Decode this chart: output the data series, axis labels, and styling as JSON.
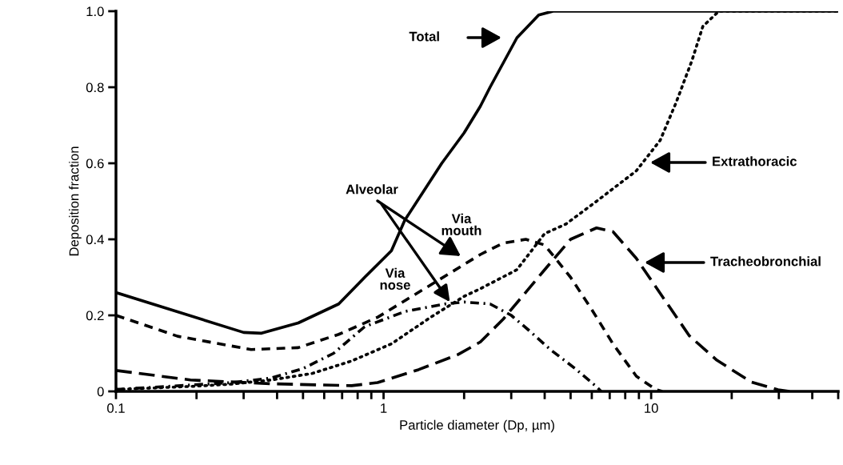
{
  "chart_data": {
    "type": "line",
    "xlabel": "Particle diameter (Dp, µm)",
    "ylabel": "Deposition fraction",
    "log": "x",
    "grid": false,
    "legend": false,
    "marker": "none",
    "xlim": [
      0.1,
      50
    ],
    "ylim": [
      0,
      1.0
    ],
    "xticks": [
      0.1,
      {
        "value": 0.2,
        "label": null
      },
      {
        "value": 0.3,
        "label": null
      },
      {
        "value": 0.4,
        "label": null
      },
      {
        "value": 0.5,
        "label": null
      },
      {
        "value": 0.6,
        "label": null
      },
      {
        "value": 0.7,
        "label": null
      },
      {
        "value": 0.8,
        "label": null
      },
      {
        "value": 0.9,
        "label": null
      },
      1,
      {
        "value": 2,
        "label": null
      },
      {
        "value": 3,
        "label": null
      },
      {
        "value": 4,
        "label": null
      },
      {
        "value": 5,
        "label": null
      },
      {
        "value": 6,
        "label": null
      },
      {
        "value": 7,
        "label": null
      },
      {
        "value": 8,
        "label": null
      },
      {
        "value": 9,
        "label": null
      },
      10,
      {
        "value": 20,
        "label": null
      },
      {
        "value": 30,
        "label": null
      },
      {
        "value": 40,
        "label": null
      },
      {
        "value": 50,
        "label": null
      }
    ],
    "yticks": [
      0,
      0.2,
      0.4,
      0.6,
      0.8,
      {
        "value": 1,
        "label": "1.0"
      }
    ],
    "series": [
      {
        "color": "#000000",
        "line_style": "solid",
        "x": [
          0.1,
          0.3,
          0.35,
          0.48,
          0.68,
          0.85,
          1.07,
          1.2,
          1.65,
          2.0,
          2.3,
          2.5,
          3.15,
          3.8,
          4.3,
          10,
          50
        ],
        "values": [
          0.26,
          0.155,
          0.153,
          0.18,
          0.23,
          0.3,
          0.37,
          0.45,
          0.6,
          0.68,
          0.75,
          0.8,
          0.93,
          0.99,
          1.0,
          1.0,
          1.0
        ]
      },
      {
        "color": "#000000",
        "line_style": "dotted",
        "x": [
          0.1,
          0.19,
          0.27,
          0.38,
          0.54,
          0.76,
          1.07,
          1.5,
          2.0,
          2.3,
          3.15,
          4.0,
          4.8,
          6.25,
          8.8,
          10.8,
          12.4,
          14.2,
          15.6,
          17.9,
          50
        ],
        "values": [
          0.005,
          0.013,
          0.019,
          0.03,
          0.047,
          0.08,
          0.125,
          0.195,
          0.25,
          0.27,
          0.32,
          0.415,
          0.44,
          0.5,
          0.58,
          0.66,
          0.76,
          0.87,
          0.96,
          1.0,
          1.0
        ]
      },
      {
        "color": "#000000",
        "line_style": "dashed",
        "x": [
          0.1,
          0.17,
          0.32,
          0.48,
          0.68,
          0.95,
          1.5,
          2.3,
          2.8,
          3.4,
          4.0,
          5.0,
          6.0,
          7.2,
          8.8,
          10.4,
          11
        ],
        "values": [
          0.2,
          0.145,
          0.11,
          0.115,
          0.15,
          0.195,
          0.28,
          0.36,
          0.39,
          0.4,
          0.385,
          0.3,
          0.215,
          0.125,
          0.04,
          0.005,
          0
        ]
      },
      {
        "color": "#000000",
        "line_style": "dashdot",
        "x": [
          0.1,
          0.27,
          0.38,
          0.5,
          0.65,
          0.85,
          1.2,
          1.7,
          2.0,
          2.5,
          3.0,
          3.5,
          4.2,
          5.2,
          6.25,
          6.5
        ],
        "values": [
          0.005,
          0.023,
          0.035,
          0.06,
          0.1,
          0.17,
          0.21,
          0.23,
          0.235,
          0.23,
          0.2,
          0.16,
          0.11,
          0.06,
          0.012,
          0
        ]
      },
      {
        "color": "#000000",
        "line_style": "longdashed",
        "x": [
          0.1,
          0.19,
          0.38,
          0.76,
          0.95,
          1.35,
          1.9,
          2.3,
          2.8,
          4.0,
          5.0,
          6.25,
          7.2,
          8.8,
          11,
          13.9,
          17.6,
          23.6,
          29.8,
          33
        ],
        "values": [
          0.055,
          0.03,
          0.02,
          0.015,
          0.023,
          0.057,
          0.097,
          0.13,
          0.19,
          0.32,
          0.4,
          0.43,
          0.42,
          0.35,
          0.25,
          0.146,
          0.082,
          0.025,
          0.004,
          0
        ]
      }
    ],
    "annotations": [
      "Total",
      "Extrathoracic",
      "Tracheobronchial",
      {
        "text": "Alveolar",
        "x": 1.77,
        "y": 0.235
      },
      "Via\nnose",
      "Via\nmouth"
    ]
  }
}
